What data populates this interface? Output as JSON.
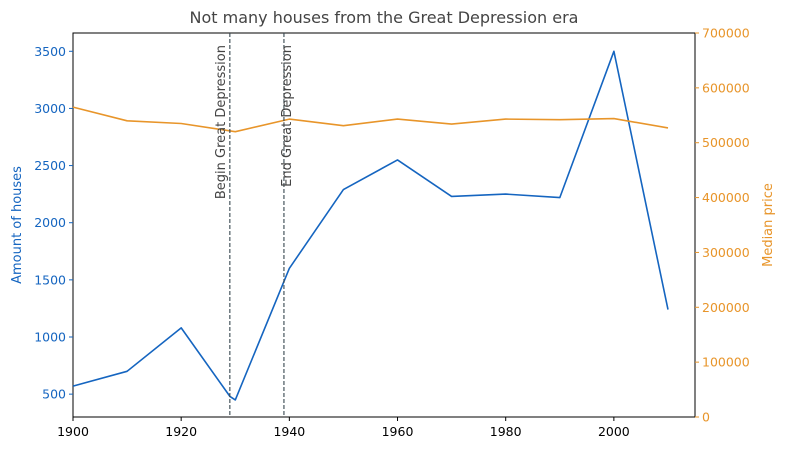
{
  "chart_data": {
    "type": "line",
    "title": "Not many houses from the Great Depression era",
    "xlabel": "",
    "ylabel_left": "Amount of houses",
    "ylabel_right": "Median price",
    "xlim": [
      1900,
      2015
    ],
    "ylim_left": [
      300,
      3660
    ],
    "ylim_right": [
      0,
      700000
    ],
    "x_ticks": [
      1900,
      1920,
      1940,
      1960,
      1980,
      2000
    ],
    "y_left_ticks": [
      500,
      1000,
      1500,
      2000,
      2500,
      3000,
      3500
    ],
    "y_right_ticks": [
      0,
      100000,
      200000,
      300000,
      400000,
      500000,
      600000,
      700000
    ],
    "grid": false,
    "colors": {
      "left": "#1565c0",
      "right": "#e8952a",
      "vline": "#37474f",
      "text": "#444444"
    },
    "series": [
      {
        "name": "",
        "axis": "left",
        "x": [
          1900,
          1910,
          1920,
          1929,
          1930,
          1940,
          1950,
          1960,
          1970,
          1980,
          1990,
          2000,
          2010
        ],
        "values": [
          570,
          700,
          1080,
          480,
          450,
          1600,
          2290,
          2550,
          2230,
          2250,
          2220,
          3500,
          1240
        ]
      },
      {
        "name": "",
        "axis": "right",
        "x": [
          1900,
          1910,
          1920,
          1930,
          1940,
          1950,
          1960,
          1970,
          1980,
          1990,
          2000,
          2010
        ],
        "values": [
          565000,
          540000,
          535000,
          520000,
          543000,
          531000,
          543000,
          534000,
          543000,
          542000,
          544000,
          527000
        ]
      }
    ],
    "annotations": [
      {
        "x": 1929,
        "text": "Begin Great Depression"
      },
      {
        "x": 1939,
        "text": "End Great Depression"
      }
    ]
  }
}
